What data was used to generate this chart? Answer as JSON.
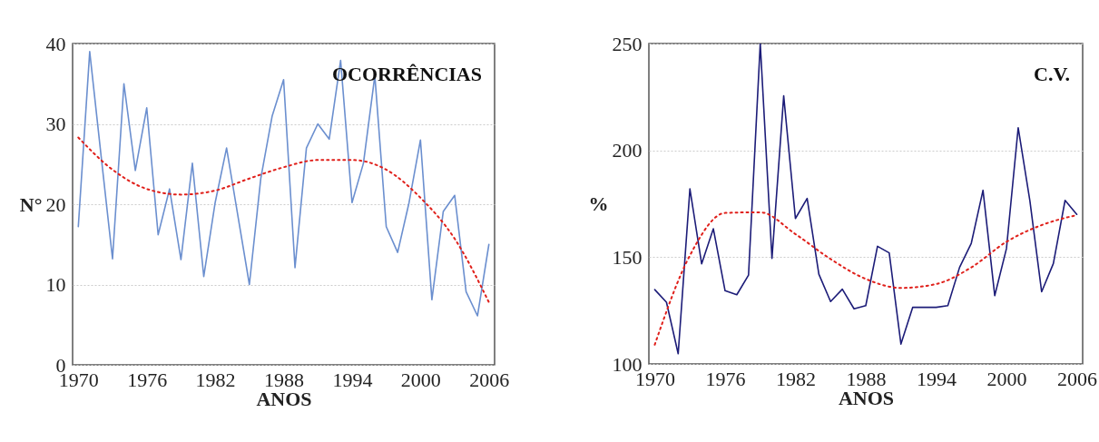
{
  "chart_data": [
    {
      "type": "line",
      "title": "OCORRÊNCIAS",
      "xlabel": "ANOS",
      "ylabel": "N°",
      "xlim": [
        1969.5,
        2006.5
      ],
      "xticks": [
        1970,
        1976,
        1982,
        1988,
        1994,
        2000,
        2006
      ],
      "ylim": [
        0,
        40
      ],
      "yticks": [
        0,
        10,
        20,
        30,
        40
      ],
      "grid": "y",
      "line_style": "solid",
      "x": [
        1970,
        1971,
        1972,
        1973,
        1974,
        1975,
        1976,
        1977,
        1978,
        1979,
        1980,
        1981,
        1982,
        1983,
        1984,
        1985,
        1986,
        1987,
        1988,
        1989,
        1990,
        1991,
        1992,
        1993,
        1994,
        1995,
        1996,
        1997,
        1998,
        1999,
        2000,
        2001,
        2002,
        2003,
        2004,
        2005,
        2006
      ],
      "series": [
        {
          "color": "#6b8fcf",
          "values": [
            17.2,
            39,
            26,
            13.2,
            35,
            24.2,
            32,
            16.2,
            21.9,
            13.1,
            25.1,
            11,
            20.2,
            27,
            18.5,
            10,
            23.2,
            31,
            35.5,
            12.1,
            27,
            30,
            28.1,
            37.9,
            20.2,
            25.1,
            36,
            17.2,
            14,
            20.2,
            28,
            8.1,
            19.1,
            21.1,
            9.1,
            6.1,
            15
          ]
        },
        {
          "type": "line",
          "color": "#e0201b",
          "line_style": "dotted",
          "x": [
            1970,
            1973,
            1976,
            1979,
            1982,
            1985,
            1988,
            1991,
            1994,
            1997,
            2000,
            2003,
            2006
          ],
          "values": [
            28.3,
            24.3,
            21.9,
            21.2,
            21.7,
            23.2,
            24.6,
            25.5,
            25.5,
            24.3,
            20.8,
            15.7,
            7.8
          ]
        }
      ]
    },
    {
      "type": "line",
      "title": "C.V.",
      "xlabel": "ANOS",
      "ylabel": "%",
      "xlim": [
        1969.5,
        2006.5
      ],
      "xticks": [
        1970,
        1976,
        1982,
        1988,
        1994,
        2000,
        2006
      ],
      "ylim": [
        100,
        250
      ],
      "yticks": [
        100,
        150,
        200,
        250
      ],
      "grid": "y",
      "line_style": "solid",
      "x": [
        1970,
        1971,
        1972,
        1973,
        1974,
        1975,
        1976,
        1977,
        1978,
        1979,
        1980,
        1981,
        1982,
        1983,
        1984,
        1985,
        1986,
        1987,
        1988,
        1989,
        1990,
        1991,
        1992,
        1993,
        1994,
        1995,
        1996,
        1997,
        1998,
        1999,
        2000,
        2001,
        2002,
        2003,
        2004,
        2005,
        2006
      ],
      "series": [
        {
          "color": "#1c1c78",
          "values": [
            134.8,
            128.9,
            104.8,
            182,
            146.9,
            163.3,
            134.3,
            132.4,
            141.6,
            250,
            149.4,
            225.5,
            168.1,
            177.5,
            142,
            129.2,
            135,
            125.8,
            127.3,
            155.1,
            152,
            109.3,
            126.5,
            126.5,
            126.5,
            127.3,
            145.2,
            156.5,
            181.3,
            132,
            154,
            210.6,
            176.3,
            133.8,
            147,
            176.6,
            170
          ]
        },
        {
          "type": "line",
          "color": "#e0201b",
          "line_style": "dotted",
          "x": [
            1970,
            1973,
            1976,
            1979,
            1982,
            1985,
            1988,
            1991,
            1994,
            1997,
            2000,
            2003,
            2006
          ],
          "values": [
            109,
            150.8,
            170.7,
            171,
            160.8,
            149.1,
            139.8,
            135.6,
            137.4,
            145.2,
            157.2,
            165,
            169.7
          ]
        }
      ]
    }
  ]
}
